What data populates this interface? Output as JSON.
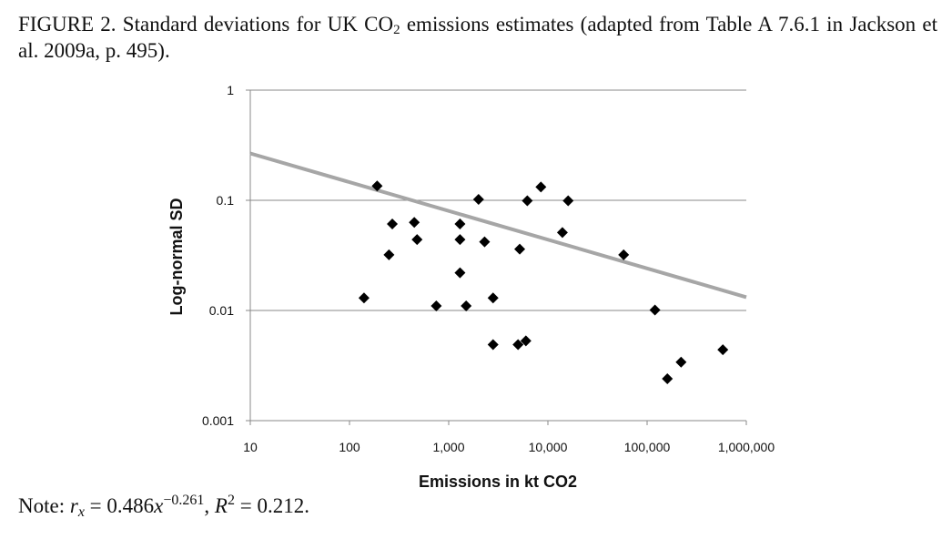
{
  "caption": {
    "prefix": "FIGURE 2. Standard deviations for UK CO",
    "sub": "2",
    "suffix": " emissions estimates (adapted from Table A 7.6.1 in Jackson et al. 2009a, p. 495)."
  },
  "note": {
    "label": "Note: ",
    "r": "r",
    "r_sub": "x",
    "eq1": " = 0.486",
    "x": "x",
    "exp": "−0.261",
    "sep": ", ",
    "R": "R",
    "R_exp": "2",
    "eq2": " = 0.212."
  },
  "chart_data": {
    "type": "scatter",
    "xlabel": "Emissions in kt CO2",
    "ylabel": "Log-normal SD",
    "xscale": "log",
    "yscale": "log",
    "xlim": [
      10,
      1000000
    ],
    "ylim": [
      0.001,
      1
    ],
    "xticks": [
      10,
      100,
      1000,
      10000,
      100000,
      1000000
    ],
    "xtick_labels": [
      "10",
      "100",
      "1,000",
      "10,000",
      "100,000",
      "1,000,000"
    ],
    "yticks": [
      0.001,
      0.01,
      0.1,
      1
    ],
    "ytick_labels": [
      "0.001",
      "0.01",
      "0.1",
      "1"
    ],
    "grid": "horizontal",
    "points": [
      {
        "x": 140,
        "y": 0.013
      },
      {
        "x": 190,
        "y": 0.135
      },
      {
        "x": 250,
        "y": 0.032
      },
      {
        "x": 270,
        "y": 0.061
      },
      {
        "x": 450,
        "y": 0.063
      },
      {
        "x": 480,
        "y": 0.044
      },
      {
        "x": 750,
        "y": 0.011
      },
      {
        "x": 1300,
        "y": 0.061
      },
      {
        "x": 1300,
        "y": 0.044
      },
      {
        "x": 1300,
        "y": 0.022
      },
      {
        "x": 1500,
        "y": 0.011
      },
      {
        "x": 2000,
        "y": 0.102
      },
      {
        "x": 2300,
        "y": 0.042
      },
      {
        "x": 2800,
        "y": 0.013
      },
      {
        "x": 2800,
        "y": 0.0049
      },
      {
        "x": 5000,
        "y": 0.0049
      },
      {
        "x": 5200,
        "y": 0.036
      },
      {
        "x": 6000,
        "y": 0.0053
      },
      {
        "x": 6200,
        "y": 0.099
      },
      {
        "x": 8500,
        "y": 0.132
      },
      {
        "x": 14000,
        "y": 0.051
      },
      {
        "x": 16000,
        "y": 0.099
      },
      {
        "x": 58000,
        "y": 0.032
      },
      {
        "x": 120000,
        "y": 0.0101
      },
      {
        "x": 160000,
        "y": 0.0024
      },
      {
        "x": 220000,
        "y": 0.0034
      },
      {
        "x": 580000,
        "y": 0.0044
      }
    ],
    "trendline": {
      "a": 0.486,
      "b": -0.261
    },
    "marker_color": "#000000",
    "trendline_color": "#a6a6a6"
  }
}
